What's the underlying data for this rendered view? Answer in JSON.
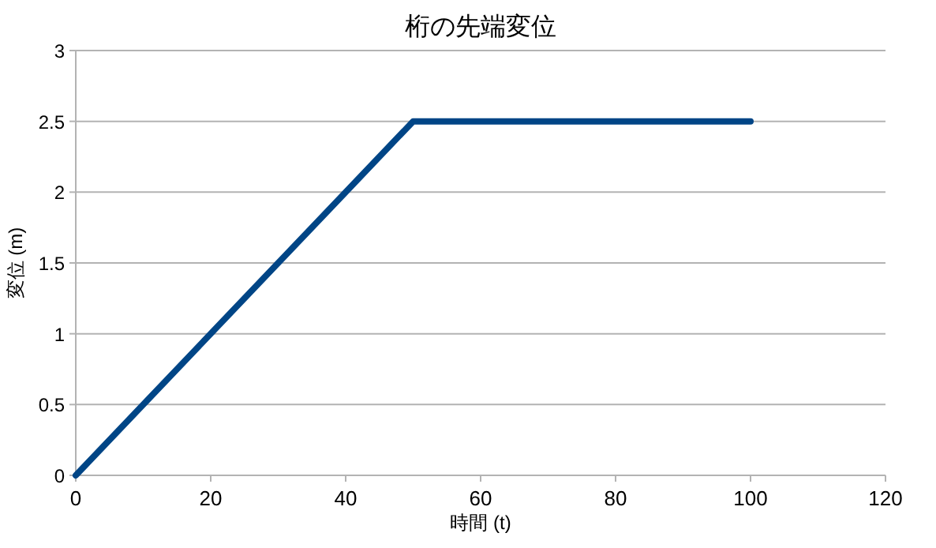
{
  "chart_data": {
    "type": "line",
    "title": "桁の先端変位",
    "xlabel": "時間 (t)",
    "ylabel": "変位 (m)",
    "x": [
      0,
      50,
      100
    ],
    "series": [
      {
        "color": "#004586",
        "values": [
          0,
          2.5,
          2.5
        ]
      }
    ],
    "xlim": [
      0,
      120
    ],
    "xticks": [
      0,
      20,
      40,
      60,
      80,
      100,
      120
    ],
    "ylim": [
      0,
      3
    ],
    "yticks": [
      0,
      {
        "value": 0.5,
        "label": "0.5"
      },
      1,
      {
        "value": 1.5,
        "label": "1.5"
      },
      2,
      {
        "value": 2.5,
        "label": "2.5"
      },
      3
    ],
    "grid": "y",
    "marker": "none",
    "line_style": "solid"
  }
}
